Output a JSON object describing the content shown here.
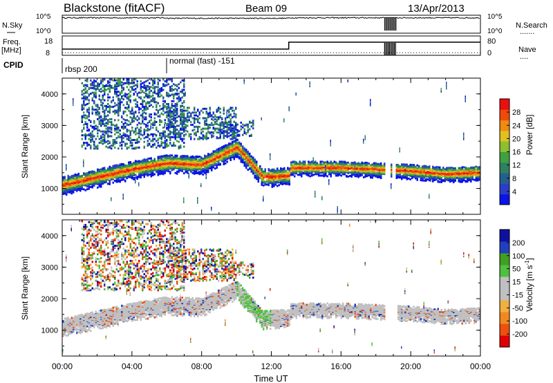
{
  "header": {
    "station": "Blackstone (fitACF)",
    "beam": "Beam 09",
    "date": "13/Apr/2013"
  },
  "side_labels": {
    "nsky": "N.Sky",
    "freq_line1": "Freq.",
    "freq_line2": "[MHz]",
    "cpid": "CPID",
    "nsearch": "N.Search",
    "nave": "Nave"
  },
  "cpid_annotations": [
    {
      "label": "rbsp 200",
      "start_hour": 0
    },
    {
      "label": "normal (fast) -151",
      "start_hour": 6
    }
  ],
  "time_axis": {
    "label": "Time UT",
    "ticks": [
      "00:00",
      "04:00",
      "08:00",
      "12:00",
      "16:00",
      "20:00",
      "00:00"
    ]
  },
  "chart_data": [
    {
      "type": "line",
      "title": "N.Sky / N.Search",
      "left_axis": {
        "label": "N.Sky",
        "ticks": [
          "10^5",
          "10^0"
        ],
        "scale": "log"
      },
      "right_axis": {
        "label": "N.Search",
        "ticks": [
          "10^5",
          "10^0"
        ],
        "scale": "log"
      },
      "xlim_hours": [
        0,
        24
      ],
      "noise_level_log": 4.6,
      "gap_hours": [
        18.5,
        19.2
      ]
    },
    {
      "type": "line",
      "title": "Freq. / Nave",
      "left_axis": {
        "label": "Freq. [MHz]",
        "ticks": [
          18,
          8
        ],
        "ylim": [
          6,
          20
        ]
      },
      "right_axis": {
        "label": "Nave",
        "ticks": [
          80,
          0
        ],
        "ylim": [
          0,
          90
        ]
      },
      "series": [
        {
          "name": "Freq.",
          "points": [
            [
              0,
              10.5
            ],
            [
              13,
              10.5
            ],
            [
              13,
              15.5
            ],
            [
              24,
              15.5
            ]
          ]
        },
        {
          "name": "Nave",
          "points": [
            [
              0,
              12
            ],
            [
              24,
              12
            ]
          ]
        }
      ],
      "xlim_hours": [
        0,
        24
      ]
    },
    {
      "type": "heatmap",
      "parameter": "Power",
      "ylabel": "Slant Range [km]",
      "colorbar_label": "Power [dB]",
      "colorbar_ticks": [
        28,
        24,
        20,
        16,
        12,
        8,
        4
      ],
      "clim": [
        0,
        30
      ],
      "ylim_km": [
        180,
        4500
      ],
      "yticks": [
        1000,
        2000,
        3000,
        4000
      ],
      "xlim_hours": [
        0,
        24
      ],
      "ground_scatter_band_km": [
        [
          0,
          1150
        ],
        [
          2,
          1400
        ],
        [
          4,
          1650
        ],
        [
          6,
          1850
        ],
        [
          8,
          1800
        ],
        [
          10,
          2350
        ],
        [
          11.5,
          1400
        ],
        [
          13,
          1450
        ],
        [
          13.1,
          1700
        ],
        [
          16,
          1700
        ],
        [
          18,
          1650
        ],
        [
          20,
          1600
        ],
        [
          22,
          1500
        ],
        [
          24,
          1550
        ]
      ],
      "scatter_patches": [
        {
          "hours": [
            1,
            7
          ],
          "km": [
            2300,
            4500
          ]
        },
        {
          "hours": [
            6,
            10
          ],
          "km": [
            2600,
            3600
          ]
        },
        {
          "hours": [
            9,
            11
          ],
          "km": [
            2700,
            3200
          ]
        }
      ]
    },
    {
      "type": "heatmap",
      "parameter": "Velocity",
      "ylabel": "Slant Range [km]",
      "colorbar_label": "Velocity [m s^-1]",
      "colorbar_ticks": [
        200,
        100,
        50,
        15,
        -15,
        -50,
        -100,
        -200
      ],
      "clim": [
        -250,
        250
      ],
      "ylim_km": [
        180,
        4500
      ],
      "yticks": [
        1000,
        2000,
        3000,
        4000
      ],
      "xlim_hours": [
        0,
        24
      ]
    }
  ],
  "colors": {
    "power_scale": [
      "#0a14e6",
      "#2a3ec8",
      "#23608e",
      "#2e8060",
      "#3fa040",
      "#8cc030",
      "#e0c020",
      "#f08a10",
      "#f04a0a",
      "#e81010"
    ],
    "velocity_scale": [
      "#e00000",
      "#ee5010",
      "#f08a20",
      "#f0b040",
      "#c0c0c0",
      "#c0c0c0",
      "#50c040",
      "#40a020",
      "#2040c0",
      "#1010a0"
    ],
    "ground_scatter": "#c0c0c0"
  }
}
